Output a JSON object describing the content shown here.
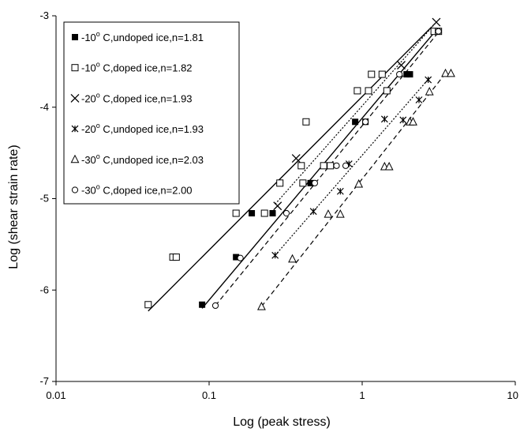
{
  "chart_data": {
    "type": "scatter",
    "title": "",
    "xlabel": "Log (peak stress)",
    "ylabel": "Log (shear strain rate)",
    "x_scale": "log",
    "xlim": [
      0.01,
      10
    ],
    "ylim": [
      -7,
      -3
    ],
    "x_ticks": [
      {
        "value": 0.01,
        "label": "0.01"
      },
      {
        "value": 0.1,
        "label": "0.1"
      },
      {
        "value": 1,
        "label": "1"
      },
      {
        "value": 10,
        "label": "10"
      }
    ],
    "y_ticks": [
      {
        "value": -7,
        "label": "-7"
      },
      {
        "value": -6,
        "label": "-6"
      },
      {
        "value": -5,
        "label": "-5"
      },
      {
        "value": -4,
        "label": "-4"
      },
      {
        "value": -3,
        "label": "-3"
      }
    ],
    "grid": false,
    "legend_position": "top-left",
    "series": [
      {
        "name": "-10",
        "name_sup": "o",
        "name_rest": " C,undoped ice,n=1.81",
        "marker": "filled-square",
        "line_style": "solid",
        "fit": [
          [
            0.09,
            -6.2
          ],
          [
            3.0,
            -3.17
          ]
        ],
        "points": [
          [
            0.09,
            -6.16
          ],
          [
            0.15,
            -5.64
          ],
          [
            0.19,
            -5.16
          ],
          [
            0.26,
            -5.16
          ],
          [
            0.46,
            -4.83
          ],
          [
            0.62,
            -4.64
          ],
          [
            0.9,
            -4.16
          ],
          [
            1.05,
            -4.16
          ],
          [
            1.95,
            -3.64
          ],
          [
            2.05,
            -3.64
          ]
        ]
      },
      {
        "name": "-10",
        "name_sup": "o",
        "name_rest": " C,doped ice,n=1.82",
        "marker": "open-square",
        "line_style": "solid",
        "fit": [
          [
            0.04,
            -6.23
          ],
          [
            2.85,
            -3.12
          ]
        ],
        "points": [
          [
            0.04,
            -6.16
          ],
          [
            0.058,
            -5.64
          ],
          [
            0.061,
            -5.64
          ],
          [
            0.15,
            -5.16
          ],
          [
            0.23,
            -5.16
          ],
          [
            0.29,
            -4.83
          ],
          [
            0.41,
            -4.83
          ],
          [
            0.4,
            -4.64
          ],
          [
            0.43,
            -4.16
          ],
          [
            0.56,
            -4.64
          ],
          [
            0.62,
            -4.64
          ],
          [
            0.93,
            -3.82
          ],
          [
            1.1,
            -3.82
          ],
          [
            1.15,
            -3.64
          ],
          [
            1.35,
            -3.64
          ],
          [
            1.45,
            -3.82
          ],
          [
            2.95,
            -3.17
          ],
          [
            3.15,
            -3.17
          ]
        ]
      },
      {
        "name": "-20",
        "name_sup": "o",
        "name_rest": " C,doped ice,n=1.93",
        "marker": "x",
        "line_style": "dotted",
        "fit": [
          [
            0.27,
            -5.06
          ],
          [
            3.05,
            -3.07
          ]
        ],
        "points": [
          [
            0.28,
            -5.08
          ],
          [
            0.37,
            -4.56
          ],
          [
            1.8,
            -3.54
          ],
          [
            3.05,
            -3.07
          ]
        ]
      },
      {
        "name": "-20",
        "name_sup": "o",
        "name_rest": " C,undoped ice,n=1.93",
        "marker": "star",
        "line_style": "dotted",
        "fit": [
          [
            0.27,
            -5.62
          ],
          [
            2.75,
            -3.68
          ]
        ],
        "points": [
          [
            0.27,
            -5.62
          ],
          [
            0.48,
            -5.14
          ],
          [
            0.72,
            -4.92
          ],
          [
            0.82,
            -4.62
          ],
          [
            1.4,
            -4.13
          ],
          [
            1.85,
            -4.14
          ],
          [
            2.35,
            -3.92
          ],
          [
            2.7,
            -3.7
          ]
        ]
      },
      {
        "name": "-30",
        "name_sup": "o",
        "name_rest": " C,undoped ice,n=2.03",
        "marker": "open-triangle",
        "line_style": "dashed",
        "fit": [
          [
            0.22,
            -6.18
          ],
          [
            3.5,
            -3.63
          ]
        ],
        "points": [
          [
            0.22,
            -6.18
          ],
          [
            0.35,
            -5.66
          ],
          [
            0.6,
            -5.17
          ],
          [
            0.72,
            -5.17
          ],
          [
            0.95,
            -4.84
          ],
          [
            1.4,
            -4.65
          ],
          [
            1.5,
            -4.65
          ],
          [
            2.05,
            -4.16
          ],
          [
            2.15,
            -4.16
          ],
          [
            2.75,
            -3.83
          ],
          [
            3.5,
            -3.63
          ],
          [
            3.8,
            -3.63
          ]
        ]
      },
      {
        "name": "-30",
        "name_sup": "o",
        "name_rest": " C,doped ice,n=2.00",
        "marker": "open-circle",
        "line_style": "dashed",
        "fit": [
          [
            0.11,
            -6.17
          ],
          [
            3.15,
            -3.18
          ]
        ],
        "points": [
          [
            0.11,
            -6.17
          ],
          [
            0.16,
            -5.65
          ],
          [
            0.32,
            -5.16
          ],
          [
            0.49,
            -4.83
          ],
          [
            0.68,
            -4.64
          ],
          [
            0.78,
            -4.64
          ],
          [
            1.05,
            -4.16
          ],
          [
            1.75,
            -3.64
          ],
          [
            3.15,
            -3.17
          ]
        ]
      }
    ]
  }
}
